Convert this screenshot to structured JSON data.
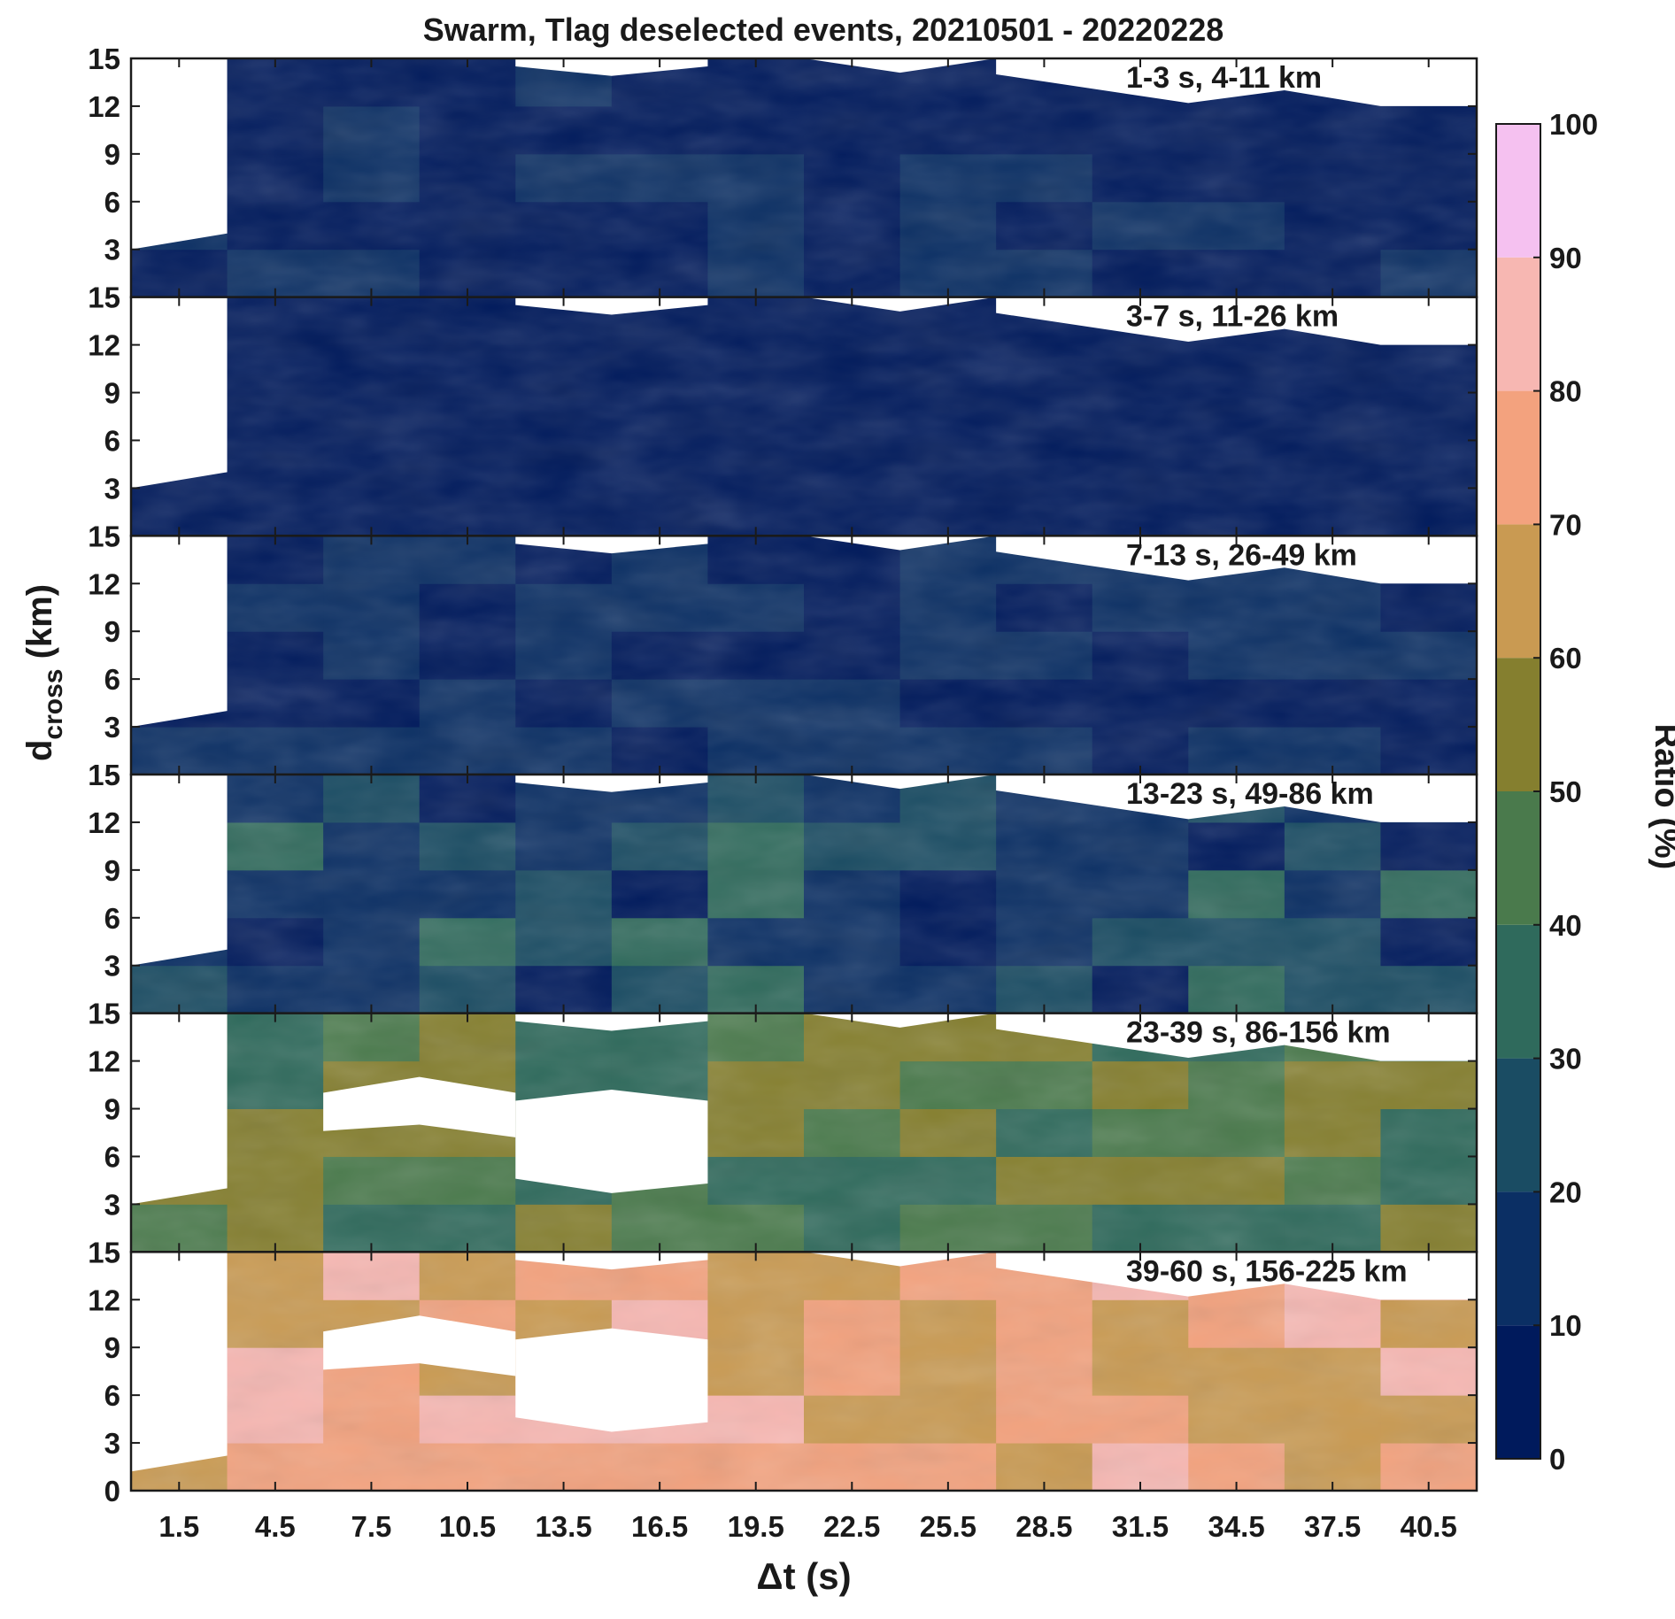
{
  "chart_data": {
    "type": "heatmap",
    "subtype": "filled-contour, stacked panels",
    "title": "Swarm, Tlag deselected events, 20210501 - 20220228",
    "xlabel": "Δt (s)",
    "ylabel_main": "d",
    "ylabel_sub": "cross",
    "ylabel_unit": " (km)",
    "x_ticks": [
      "1.5",
      "4.5",
      "7.5",
      "10.5",
      "13.5",
      "16.5",
      "19.5",
      "22.5",
      "25.5",
      "28.5",
      "31.5",
      "34.5",
      "37.5",
      "40.5"
    ],
    "x_tick_values": [
      1.5,
      4.5,
      7.5,
      10.5,
      13.5,
      16.5,
      19.5,
      22.5,
      25.5,
      28.5,
      31.5,
      34.5,
      37.5,
      40.5
    ],
    "xlim": [
      0,
      42
    ],
    "ylim": [
      0,
      15
    ],
    "y_ticks": [
      "0",
      "3",
      "6",
      "9",
      "12",
      "15"
    ],
    "y_tick_values": [
      0,
      3,
      6,
      9,
      12,
      15
    ],
    "grid": false,
    "colorbar": {
      "label": "Ratio (%)",
      "ticks": [
        "0",
        "10",
        "20",
        "30",
        "40",
        "50",
        "60",
        "70",
        "80",
        "90",
        "100"
      ],
      "levels": [
        0,
        10,
        20,
        30,
        40,
        50,
        60,
        70,
        80,
        90,
        100
      ],
      "colors": [
        "#001a5c",
        "#0b2f64",
        "#1a4c63",
        "#2f6a5c",
        "#4a7a4c",
        "#857f2f",
        "#c99a52",
        "#f3a27e",
        "#f7b7b2",
        "#f5c1f0"
      ]
    },
    "panels": [
      {
        "label": "1-3 s, 4-11 km",
        "mean_ratio": 7,
        "colorbar_level": "0-10 %"
      },
      {
        "label": "3-7 s, 11-26 km",
        "mean_ratio": 3,
        "colorbar_level": "0-10 %"
      },
      {
        "label": "7-13 s, 26-49 km",
        "mean_ratio": 10,
        "colorbar_level": "0-20 %"
      },
      {
        "label": "13-23 s, 49-86 km",
        "mean_ratio": 20,
        "colorbar_level": "10-40 %"
      },
      {
        "label": "23-39 s, 86-156 km",
        "mean_ratio": 45,
        "colorbar_level": "30-70 %"
      },
      {
        "label": "39-60 s, 156-225 km",
        "mean_ratio": 75,
        "colorbar_level": "40-100 %"
      }
    ]
  }
}
